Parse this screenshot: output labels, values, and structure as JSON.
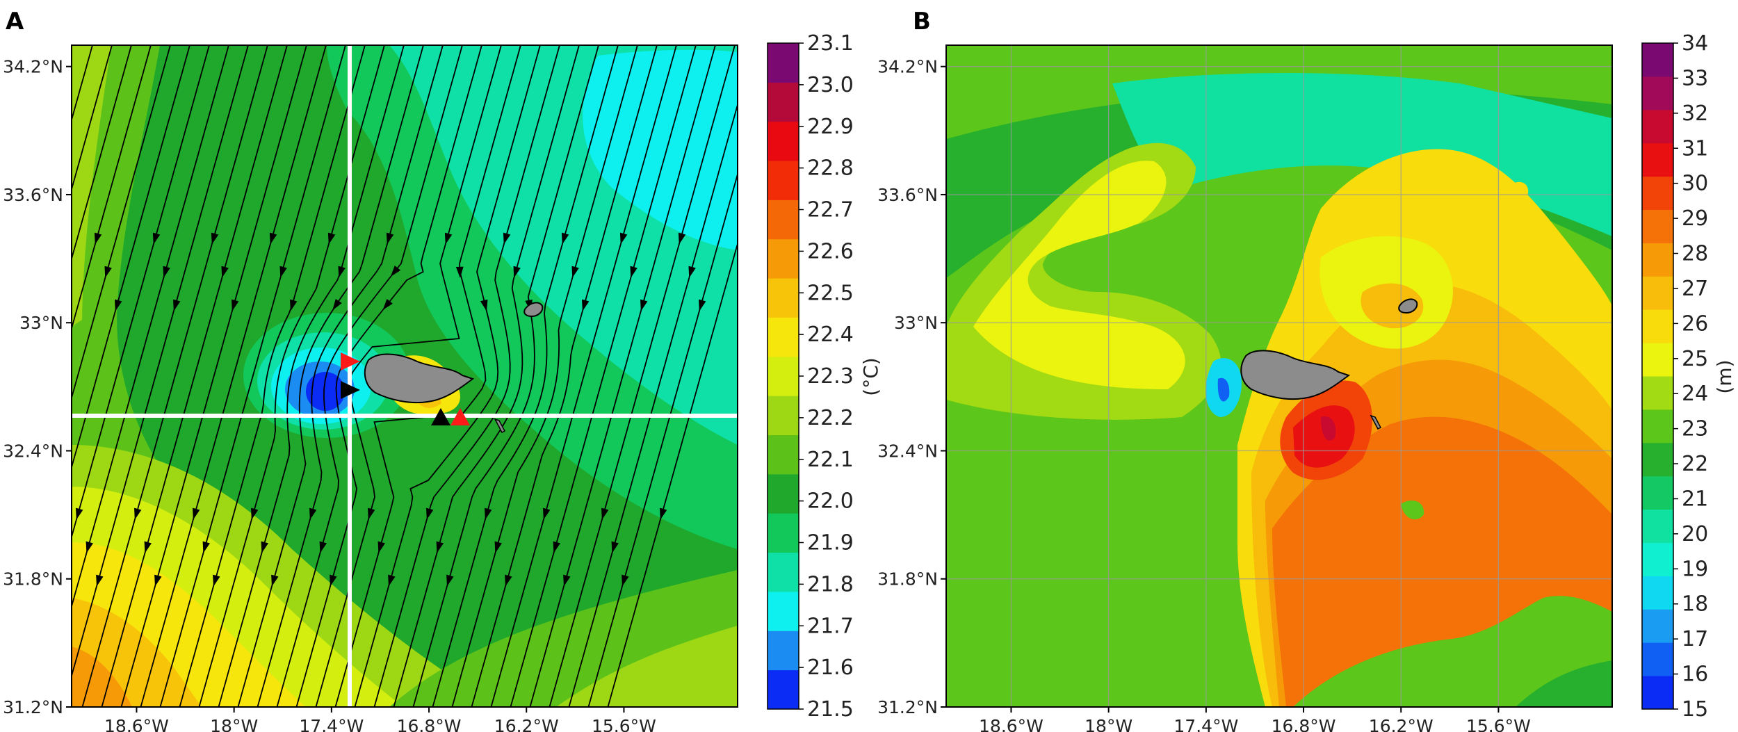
{
  "chart_data": [
    {
      "panel": "A",
      "type": "heatmap",
      "title": "",
      "xlabel": "",
      "ylabel": "",
      "xlim": [
        -19.0,
        -14.9
      ],
      "ylim": [
        31.2,
        34.3
      ],
      "x_ticks": [
        -18.6,
        -18.0,
        -17.4,
        -16.8,
        -16.2,
        -15.6
      ],
      "x_tick_labels": [
        "18.6°W",
        "18°W",
        "17.4°W",
        "16.8°W",
        "16.2°W",
        "15.6°W"
      ],
      "y_ticks": [
        31.2,
        31.8,
        32.4,
        33.0,
        33.6,
        34.2
      ],
      "y_tick_labels": [
        "31.2°N",
        "31.8°N",
        "32.4°N",
        "33°N",
        "33.6°N",
        "34.2°N"
      ],
      "colorbar": {
        "label": "(°C)",
        "levels": [
          21.5,
          21.6,
          21.7,
          21.8,
          21.9,
          22.0,
          22.1,
          22.2,
          22.3,
          22.4,
          22.5,
          22.6,
          22.7,
          22.8,
          22.9,
          23.0,
          23.1
        ],
        "tick_labels": [
          "21.5",
          "21.6",
          "21.7",
          "21.8",
          "21.9",
          "22.0",
          "22.1",
          "22.2",
          "22.3",
          "22.4",
          "22.5",
          "22.6",
          "22.7",
          "22.8",
          "22.9",
          "23.0",
          "23.1"
        ],
        "colors": [
          "#0a2cf5",
          "#1a8cf2",
          "#0ef0f0",
          "#0fe0a8",
          "#12c85a",
          "#1fa82c",
          "#5cc21a",
          "#9ed814",
          "#d4ee10",
          "#f6e60c",
          "#f8c40a",
          "#f69a08",
          "#f46808",
          "#f32c08",
          "#e80a10",
          "#b40a3a",
          "#7a0a72"
        ]
      },
      "overlays": {
        "streamlines": "black, flow from north to south, deflected around Madeira",
        "cross_section_lines": {
          "color": "#ffffff",
          "lon": -17.4,
          "lat": 32.6
        },
        "markers": [
          {
            "color": "#ff1a1a",
            "shape": "triangle-right",
            "lon": -17.38,
            "lat": 32.83
          },
          {
            "color": "#000000",
            "shape": "triangle-right",
            "lon": -17.38,
            "lat": 32.71
          },
          {
            "color": "#000000",
            "shape": "triangle-up",
            "lon": -16.87,
            "lat": 32.6
          },
          {
            "color": "#ff1a1a",
            "shape": "triangle-up",
            "lon": -16.78,
            "lat": 32.6
          }
        ],
        "land_color": "#8c8c8c"
      }
    },
    {
      "panel": "B",
      "type": "heatmap",
      "title": "",
      "xlabel": "",
      "ylabel": "",
      "xlim": [
        -19.0,
        -14.9
      ],
      "ylim": [
        31.2,
        34.3
      ],
      "x_ticks": [
        -18.6,
        -18.0,
        -17.4,
        -16.8,
        -16.2,
        -15.6
      ],
      "x_tick_labels": [
        "18.6°W",
        "18°W",
        "17.4°W",
        "16.8°W",
        "16.2°W",
        "15.6°W"
      ],
      "y_ticks": [
        31.2,
        31.8,
        32.4,
        33.0,
        33.6,
        34.2
      ],
      "y_tick_labels": [
        "31.2°N",
        "31.8°N",
        "32.4°N",
        "33°N",
        "33.6°N",
        "34.2°N"
      ],
      "grid": true,
      "colorbar": {
        "label": "(m)",
        "levels": [
          15,
          16,
          17,
          18,
          19,
          20,
          21,
          22,
          23,
          24,
          25,
          26,
          27,
          28,
          29,
          30,
          31,
          32,
          33,
          34
        ],
        "tick_labels": [
          "15",
          "16",
          "17",
          "18",
          "19",
          "20",
          "21",
          "22",
          "23",
          "24",
          "25",
          "26",
          "27",
          "28",
          "29",
          "30",
          "31",
          "32",
          "33",
          "34"
        ],
        "colors": [
          "#0a2cf5",
          "#1060f3",
          "#1a9cf2",
          "#10d8f0",
          "#10f0d0",
          "#10e0a0",
          "#14c864",
          "#26b02e",
          "#5cc61a",
          "#a2da14",
          "#eaf40e",
          "#f8dc0c",
          "#f8bc0a",
          "#f69a08",
          "#f47208",
          "#f24408",
          "#e81010",
          "#c80a30",
          "#a00a58",
          "#7a0a72"
        ]
      },
      "overlays": {
        "land_color": "#8c8c8c"
      }
    }
  ]
}
